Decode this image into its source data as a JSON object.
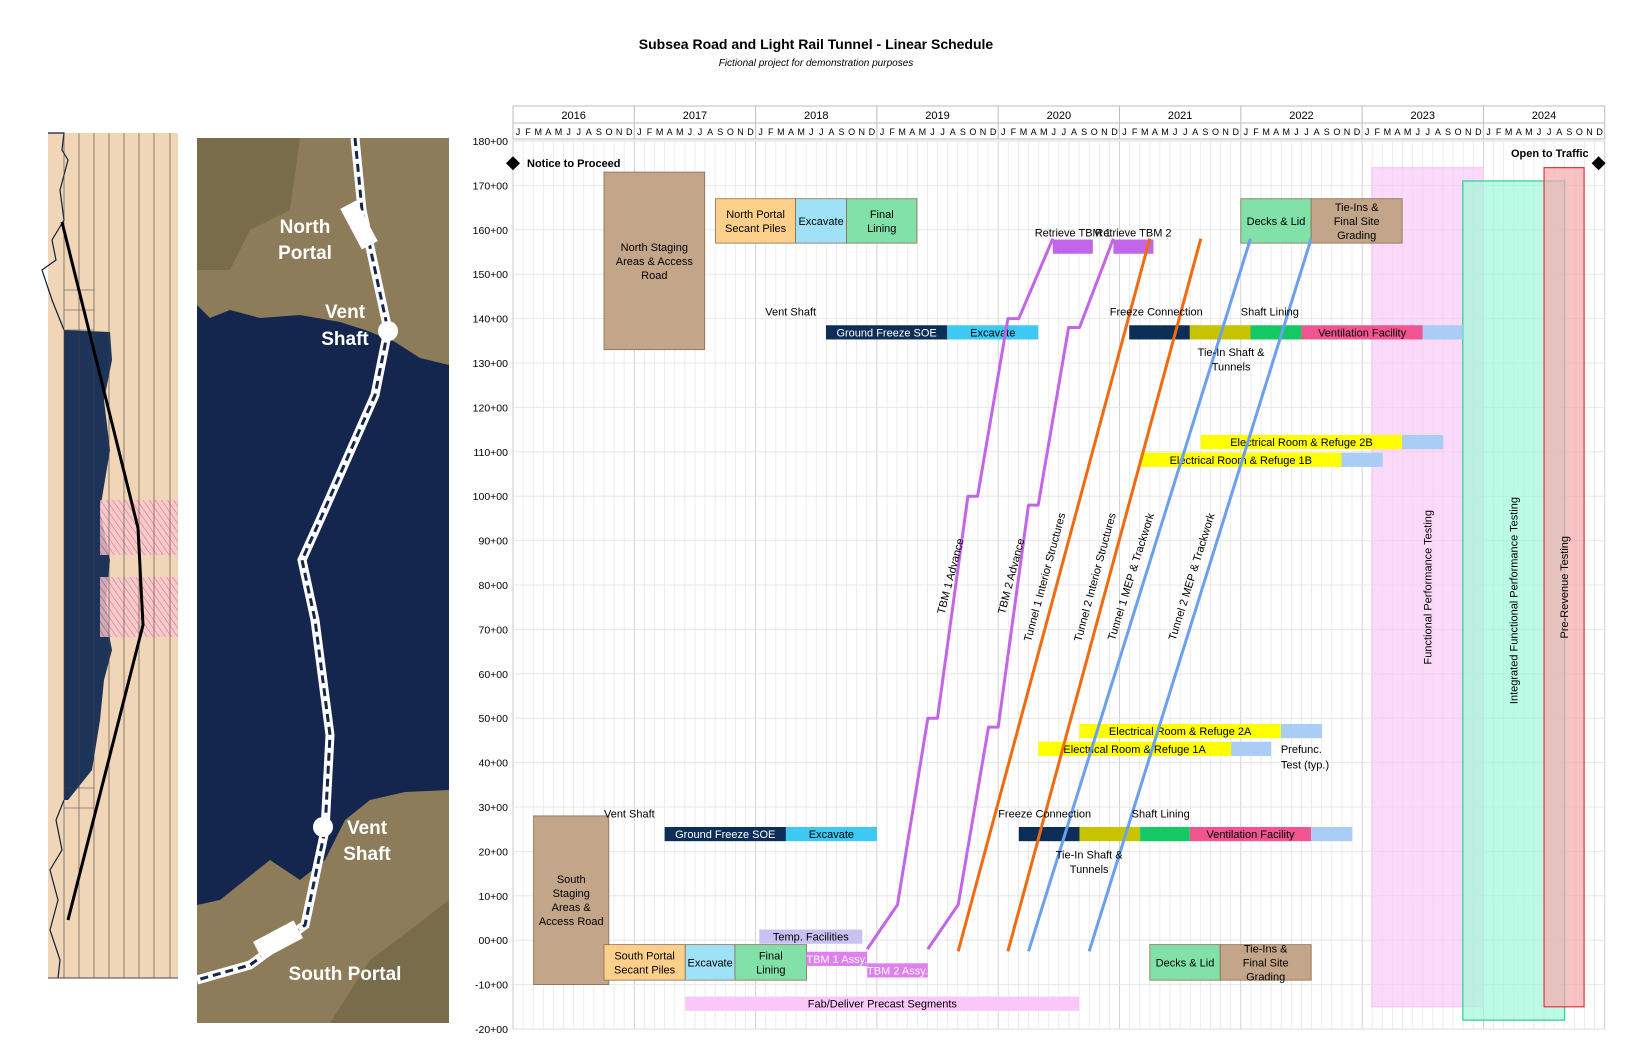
{
  "title": "Subsea Road and Light Rail Tunnel - Linear Schedule",
  "subtitle": "Fictional project for demonstration purposes",
  "colors": {
    "staging": "#c3a58a",
    "portal_piles": "#fcd08a",
    "excavate": "#9fe2f7",
    "final_lining": "#82e0a9",
    "dark_navy": "#0d2f57",
    "excavate_blue": "#3ec9f5",
    "olive": "#c6c300",
    "green": "#14c864",
    "pink": "#f0558f",
    "light_blue": "#a9cdf5",
    "yellow": "#ffff00",
    "tbm": "#c365e8",
    "orange": "#f26a10",
    "mep": "#6aa0ee",
    "lavender": "#c9c1f2",
    "magenta": "#e07ff0",
    "precast": "#fbc6f8",
    "functional": "#f9c9f5",
    "integrated": "#9ef8d8",
    "integrated_edge": "#2ecf8a",
    "prerev": "#f7a9ad",
    "prerev_edge": "#e6333c",
    "sea": "#14254e",
    "land": "#8d7c5a"
  },
  "map": {
    "labels": {
      "north_portal": "North Portal",
      "vent_shaft_n": "Vent Shaft",
      "vent_shaft_s": "Vent Shaft",
      "south_portal": "South Portal"
    }
  },
  "chart_data": {
    "type": "gantt-linear",
    "title": "Subsea Road and Light Rail Tunnel - Linear Schedule",
    "subtitle": "Fictional project for demonstration purposes",
    "x_axis": {
      "type": "time",
      "start_year": 2016,
      "end_year": 2024,
      "years": [
        "2016",
        "2017",
        "2018",
        "2019",
        "2020",
        "2021",
        "2022",
        "2023",
        "2024"
      ],
      "months": [
        "J",
        "F",
        "M",
        "A",
        "M",
        "J",
        "J",
        "A",
        "S",
        "O",
        "N",
        "D"
      ]
    },
    "y_axis": {
      "type": "station",
      "min": -20,
      "max": 180,
      "step": 10,
      "tick_labels": [
        "-20+00",
        "-10+00",
        "00+00",
        "10+00",
        "20+00",
        "30+00",
        "40+00",
        "50+00",
        "60+00",
        "70+00",
        "80+00",
        "90+00",
        "100+00",
        "110+00",
        "120+00",
        "130+00",
        "140+00",
        "150+00",
        "160+00",
        "170+00",
        "180+00"
      ]
    },
    "milestones": [
      {
        "label": "Notice to Proceed",
        "t": 2016.0,
        "y": 175
      },
      {
        "label": "Open to Traffic",
        "t": 2024.95,
        "y": 175
      }
    ],
    "blocks": [
      {
        "label": "North Staging Areas & Access Road",
        "t0": 2016.75,
        "t1": 2017.58,
        "y0": 133,
        "y1": 173,
        "color": "staging"
      },
      {
        "label": "North Portal Secant Piles",
        "t0": 2017.67,
        "t1": 2018.33,
        "y0": 157,
        "y1": 167,
        "color": "portal_piles"
      },
      {
        "label": "Excavate",
        "t0": 2018.33,
        "t1": 2018.75,
        "y0": 157,
        "y1": 167,
        "color": "excavate"
      },
      {
        "label": "Final Lining",
        "t0": 2018.75,
        "t1": 2019.33,
        "y0": 157,
        "y1": 167,
        "color": "final_lining"
      },
      {
        "label": "Decks & Lid",
        "t0": 2022.0,
        "t1": 2022.58,
        "y0": 157,
        "y1": 167,
        "color": "final_lining"
      },
      {
        "label": "Tie-Ins & Final Site Grading",
        "t0": 2022.58,
        "t1": 2023.33,
        "y0": 157,
        "y1": 167,
        "color": "staging"
      },
      {
        "label": "South Staging Areas & Access Road",
        "t0": 2016.17,
        "t1": 2016.79,
        "y0": -10,
        "y1": 28,
        "color": "staging"
      },
      {
        "label": "South Portal Secant Piles",
        "t0": 2016.75,
        "t1": 2017.42,
        "y0": -9,
        "y1": -1,
        "color": "portal_piles"
      },
      {
        "label": "Excavate",
        "t0": 2017.42,
        "t1": 2017.83,
        "y0": -9,
        "y1": -1,
        "color": "excavate"
      },
      {
        "label": "Final Lining",
        "t0": 2017.83,
        "t1": 2018.42,
        "y0": -9,
        "y1": -1,
        "color": "final_lining"
      },
      {
        "label": "Decks & Lid",
        "t0": 2021.25,
        "t1": 2021.83,
        "y0": -9,
        "y1": -1,
        "color": "final_lining"
      },
      {
        "label": "Tie-Ins & Final Site Grading",
        "t0": 2021.83,
        "t1": 2022.58,
        "y0": -9,
        "y1": -1,
        "color": "staging"
      }
    ],
    "bars": [
      {
        "label": "Ground Freeze SOE",
        "t0": 2018.58,
        "t1": 2019.58,
        "y": 136.9,
        "h": 3.2,
        "color": "dark_navy",
        "text": "light"
      },
      {
        "label": "Excavate",
        "t0": 2019.58,
        "t1": 2020.33,
        "y": 136.9,
        "h": 3.2,
        "color": "excavate_blue"
      },
      {
        "label": "Ground Freeze SOE",
        "t0": 2017.25,
        "t1": 2018.25,
        "y": 23.9,
        "h": 3.2,
        "color": "dark_navy",
        "text": "light"
      },
      {
        "label": "Excavate",
        "t0": 2018.25,
        "t1": 2019.0,
        "y": 23.9,
        "h": 3.2,
        "color": "excavate_blue"
      },
      {
        "label": "",
        "t0": 2021.08,
        "t1": 2021.58,
        "y": 136.9,
        "h": 3.2,
        "color": "dark_navy"
      },
      {
        "label": "",
        "t0": 2021.58,
        "t1": 2022.08,
        "y": 136.9,
        "h": 3.2,
        "color": "olive"
      },
      {
        "label": "",
        "t0": 2022.08,
        "t1": 2022.5,
        "y": 136.9,
        "h": 3.2,
        "color": "green"
      },
      {
        "label": "Ventilation Facility",
        "t0": 2022.5,
        "t1": 2023.5,
        "y": 136.9,
        "h": 3.2,
        "color": "pink"
      },
      {
        "label": "",
        "t0": 2023.5,
        "t1": 2023.83,
        "y": 136.9,
        "h": 3.2,
        "color": "light_blue"
      },
      {
        "label": "",
        "t0": 2020.17,
        "t1": 2020.67,
        "y": 23.9,
        "h": 3.2,
        "color": "dark_navy"
      },
      {
        "label": "",
        "t0": 2020.67,
        "t1": 2021.17,
        "y": 23.9,
        "h": 3.2,
        "color": "olive"
      },
      {
        "label": "",
        "t0": 2021.17,
        "t1": 2021.58,
        "y": 23.9,
        "h": 3.2,
        "color": "green"
      },
      {
        "label": "Ventilation Facility",
        "t0": 2021.58,
        "t1": 2022.58,
        "y": 23.9,
        "h": 3.2,
        "color": "pink"
      },
      {
        "label": "",
        "t0": 2022.58,
        "t1": 2022.92,
        "y": 23.9,
        "h": 3.2,
        "color": "light_blue"
      },
      {
        "label": "Electrical Room & Refuge 2B",
        "t0": 2021.67,
        "t1": 2023.33,
        "y": 112.2,
        "h": 3.2,
        "color": "yellow"
      },
      {
        "label": "",
        "t0": 2023.33,
        "t1": 2023.67,
        "y": 112.2,
        "h": 3.2,
        "color": "light_blue"
      },
      {
        "label": "Electrical Room & Refuge 1B",
        "t0": 2021.17,
        "t1": 2022.83,
        "y": 108.2,
        "h": 3.2,
        "color": "yellow"
      },
      {
        "label": "",
        "t0": 2022.83,
        "t1": 2023.17,
        "y": 108.2,
        "h": 3.2,
        "color": "light_blue"
      },
      {
        "label": "Electrical Room & Refuge 2A",
        "t0": 2020.67,
        "t1": 2022.33,
        "y": 47.1,
        "h": 3.2,
        "color": "yellow"
      },
      {
        "label": "",
        "t0": 2022.33,
        "t1": 2022.67,
        "y": 47.1,
        "h": 3.2,
        "color": "light_blue"
      },
      {
        "label": "Electrical Room & Refuge 1A",
        "t0": 2020.33,
        "t1": 2021.92,
        "y": 43.1,
        "h": 3.2,
        "color": "yellow"
      },
      {
        "label": "",
        "t0": 2021.92,
        "t1": 2022.25,
        "y": 43.1,
        "h": 3.2,
        "color": "light_blue"
      },
      {
        "label": "Temp. Facilities",
        "t0": 2018.03,
        "t1": 2018.88,
        "y": 0.8,
        "h": 3.2,
        "color": "lavender"
      },
      {
        "label": "TBM 1 Assy.",
        "t0": 2018.42,
        "t1": 2018.92,
        "y": -4.2,
        "h": 3.2,
        "color": "magenta",
        "text": "light"
      },
      {
        "label": "TBM 2 Assy.",
        "t0": 2018.92,
        "t1": 2019.42,
        "y": -6.8,
        "h": 3.2,
        "color": "magenta",
        "text": "light"
      },
      {
        "label": "Fab/Deliver Precast Segments",
        "t0": 2017.42,
        "t1": 2020.67,
        "y": -14.3,
        "h": 3.2,
        "color": "precast"
      },
      {
        "label": "Retrieve TBM 1",
        "t0": 2020.45,
        "t1": 2020.78,
        "y": 156.2,
        "h": 3.2,
        "color": "tbm"
      },
      {
        "label": "Retrieve TBM 2",
        "t0": 2020.95,
        "t1": 2021.28,
        "y": 156.2,
        "h": 3.2,
        "color": "tbm"
      }
    ],
    "testing_bands": [
      {
        "label": "Functional Performance Testing",
        "t0": 2023.08,
        "t1": 2024.0,
        "y0": -15,
        "y1": 174,
        "fill": "functional",
        "edge": "functional"
      },
      {
        "label": "Integrated Functional Performance Testing",
        "t0": 2023.83,
        "t1": 2024.67,
        "y0": -18,
        "y1": 171,
        "fill": "integrated",
        "edge": "integrated_edge"
      },
      {
        "label": "Pre-Revenue Testing",
        "t0": 2024.5,
        "t1": 2024.83,
        "y0": -15,
        "y1": 174,
        "fill": "prerev",
        "edge": "prerev_edge"
      }
    ],
    "lines": [
      {
        "label": "TBM 1 Advance",
        "color": "tbm",
        "points": [
          [
            2018.92,
            -2
          ],
          [
            2019.17,
            8
          ],
          [
            2019.42,
            50
          ],
          [
            2019.5,
            50
          ],
          [
            2019.75,
            100
          ],
          [
            2019.83,
            100
          ],
          [
            2020.08,
            140
          ],
          [
            2020.17,
            140
          ],
          [
            2020.45,
            158
          ]
        ]
      },
      {
        "label": "TBM 2 Advance",
        "color": "tbm",
        "points": [
          [
            2019.42,
            -2
          ],
          [
            2019.67,
            8
          ],
          [
            2019.92,
            48
          ],
          [
            2020.0,
            48
          ],
          [
            2020.25,
            98
          ],
          [
            2020.33,
            98
          ],
          [
            2020.58,
            138
          ],
          [
            2020.67,
            138
          ],
          [
            2020.95,
            158
          ]
        ]
      },
      {
        "label": "Tunnel 1 Interior Structures",
        "color": "orange",
        "points": [
          [
            2019.67,
            -2.5
          ],
          [
            2021.25,
            158
          ]
        ]
      },
      {
        "label": "Tunnel 2 Interior Structures",
        "color": "orange",
        "points": [
          [
            2020.08,
            -2.5
          ],
          [
            2021.67,
            158
          ]
        ]
      },
      {
        "label": "Tunnel 1 MEP & Trackwork",
        "color": "mep",
        "points": [
          [
            2020.25,
            -2.5
          ],
          [
            2022.08,
            158
          ]
        ]
      },
      {
        "label": "Tunnel 2 MEP & Trackwork",
        "color": "mep",
        "points": [
          [
            2020.75,
            -2.5
          ],
          [
            2022.58,
            158
          ]
        ]
      }
    ],
    "text_labels": [
      {
        "label": "Vent Shaft",
        "t": 2018.08,
        "y": 141.6,
        "anchor": "start"
      },
      {
        "label": "Vent Shaft",
        "t": 2016.75,
        "y": 28.5,
        "anchor": "start"
      },
      {
        "label": "Freeze Connection",
        "t": 2020.92,
        "y": 141.6,
        "anchor": "start"
      },
      {
        "label": "Shaft Lining",
        "t": 2022.0,
        "y": 141.6,
        "anchor": "start"
      },
      {
        "label": "Tie-In Shaft &",
        "t": 2021.92,
        "y": 132.5,
        "anchor": "middle"
      },
      {
        "label": "Tunnels",
        "t": 2021.92,
        "y": 129.2,
        "anchor": "middle"
      },
      {
        "label": "Freeze Connection",
        "t": 2020.0,
        "y": 28.5,
        "anchor": "start"
      },
      {
        "label": "Shaft Lining",
        "t": 2021.1,
        "y": 28.5,
        "anchor": "start"
      },
      {
        "label": "Tie-In Shaft &",
        "t": 2020.75,
        "y": 19.3,
        "anchor": "middle"
      },
      {
        "label": "Tunnels",
        "t": 2020.75,
        "y": 16.0,
        "anchor": "middle"
      },
      {
        "label": "Prefunc.",
        "t": 2022.33,
        "y": 43.1,
        "anchor": "start"
      },
      {
        "label": "Test (typ.)",
        "t": 2022.33,
        "y": 39.6,
        "anchor": "start"
      }
    ]
  }
}
